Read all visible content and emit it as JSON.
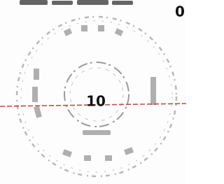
{
  "stamp": {
    "center_number": "10"
  },
  "corner_mark": "0"
}
